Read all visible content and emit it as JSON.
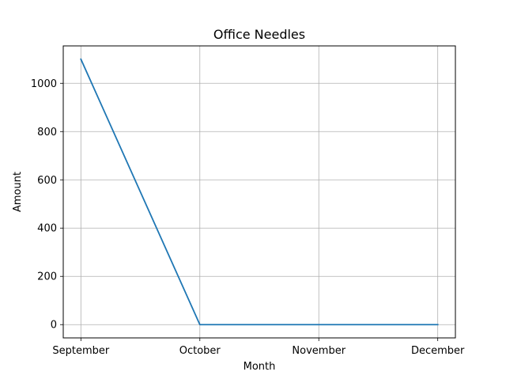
{
  "chart_data": {
    "type": "line",
    "title": "Office Needles",
    "xlabel": "Month",
    "ylabel": "Amount",
    "categories": [
      "September",
      "October",
      "November",
      "December"
    ],
    "series": [
      {
        "values": [
          1100,
          0,
          0,
          0
        ],
        "color": "#1f77b4"
      }
    ],
    "ylim": [
      -55,
      1155
    ],
    "yticks": [
      0,
      200,
      400,
      600,
      800,
      1000
    ],
    "grid": true,
    "legend": "none"
  }
}
